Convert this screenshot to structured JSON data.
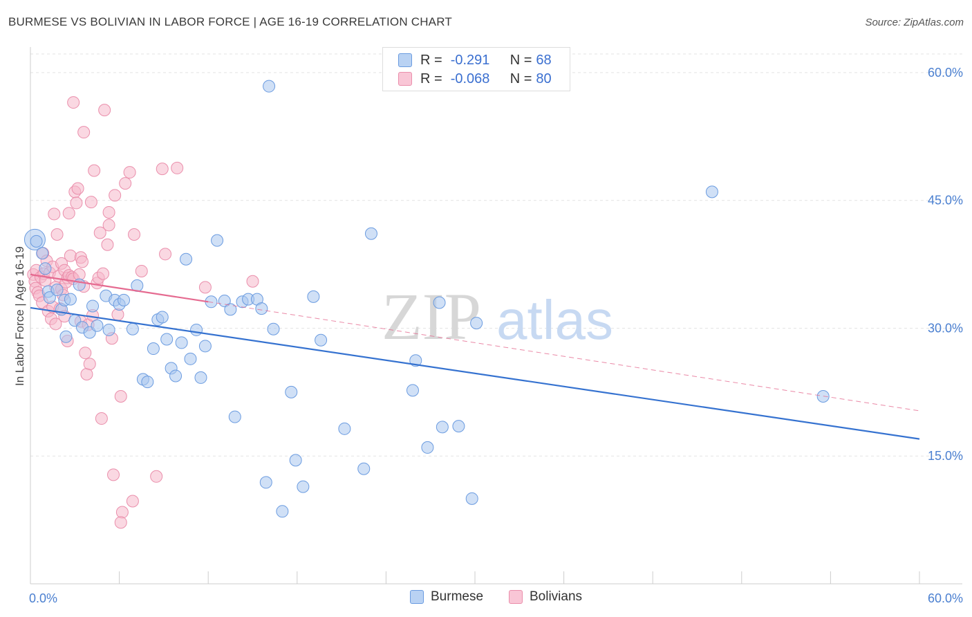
{
  "title": "BURMESE VS BOLIVIAN IN LABOR FORCE | AGE 16-19 CORRELATION CHART",
  "source": "Source: ZipAtlas.com",
  "colors": {
    "blue_fill": "#a9c6ef",
    "blue_stroke": "#6a9be0",
    "blue_line": "#3572d0",
    "pink_fill": "#f6b8cb",
    "pink_stroke": "#ea8eab",
    "pink_line": "#e56a90",
    "axis_text": "#4a7fd0",
    "grid": "#e3e3e3"
  },
  "legend": {
    "rows": [
      {
        "r_label": "R =",
        "r_value": "-0.291",
        "n_label": "N =",
        "n_value": "68"
      },
      {
        "r_label": "R =",
        "r_value": "-0.068",
        "n_label": "N =",
        "n_value": "80"
      }
    ]
  },
  "bottom_legend": [
    "Burmese",
    "Bolivians"
  ],
  "watermark": {
    "zip": "ZIP",
    "atlas": "atlas"
  },
  "chart_data": {
    "type": "scatter",
    "title": "BURMESE VS BOLIVIAN IN LABOR FORCE | AGE 16-19 CORRELATION CHART",
    "xlabel": "",
    "ylabel": "In Labor Force | Age 16-19",
    "xlim": [
      0,
      60
    ],
    "ylim": [
      0,
      63
    ],
    "x_tick_labels": [
      "0.0%",
      "60.0%"
    ],
    "y_ticks": [
      15,
      30,
      45,
      60
    ],
    "y_tick_labels": [
      "15.0%",
      "30.0%",
      "45.0%",
      "60.0%"
    ],
    "series": [
      {
        "name": "Burmese",
        "R": -0.291,
        "N": 68,
        "trend": {
          "x": [
            0,
            60
          ],
          "y": [
            32.4,
            17.0
          ]
        },
        "points": [
          [
            0.3,
            40.4
          ],
          [
            0.4,
            40.2
          ],
          [
            0.8,
            38.8
          ],
          [
            1.0,
            37.0
          ],
          [
            1.2,
            34.3
          ],
          [
            1.3,
            33.6
          ],
          [
            1.8,
            34.5
          ],
          [
            2.1,
            32.2
          ],
          [
            2.3,
            33.3
          ],
          [
            2.4,
            29.0
          ],
          [
            2.7,
            33.4
          ],
          [
            3.0,
            30.9
          ],
          [
            3.3,
            35.1
          ],
          [
            3.5,
            30.1
          ],
          [
            4.0,
            29.5
          ],
          [
            4.2,
            32.6
          ],
          [
            4.5,
            30.3
          ],
          [
            5.1,
            33.8
          ],
          [
            5.3,
            29.8
          ],
          [
            5.7,
            33.3
          ],
          [
            6.0,
            32.8
          ],
          [
            6.3,
            33.3
          ],
          [
            6.9,
            29.9
          ],
          [
            7.2,
            35.0
          ],
          [
            7.6,
            24.0
          ],
          [
            7.9,
            23.7
          ],
          [
            8.3,
            27.6
          ],
          [
            8.6,
            31.0
          ],
          [
            8.9,
            31.3
          ],
          [
            9.2,
            28.7
          ],
          [
            9.5,
            25.3
          ],
          [
            9.8,
            24.4
          ],
          [
            10.2,
            28.3
          ],
          [
            10.5,
            38.1
          ],
          [
            10.8,
            26.4
          ],
          [
            11.2,
            29.8
          ],
          [
            11.5,
            24.2
          ],
          [
            11.8,
            27.9
          ],
          [
            12.2,
            33.1
          ],
          [
            12.6,
            40.3
          ],
          [
            13.1,
            33.2
          ],
          [
            13.5,
            32.2
          ],
          [
            13.8,
            19.6
          ],
          [
            14.3,
            33.1
          ],
          [
            14.7,
            33.4
          ],
          [
            15.3,
            33.4
          ],
          [
            15.6,
            32.3
          ],
          [
            15.9,
            11.9
          ],
          [
            16.1,
            58.4
          ],
          [
            16.4,
            29.9
          ],
          [
            17.0,
            8.5
          ],
          [
            17.6,
            22.5
          ],
          [
            17.9,
            14.5
          ],
          [
            18.4,
            11.4
          ],
          [
            19.1,
            33.7
          ],
          [
            19.6,
            28.6
          ],
          [
            21.2,
            18.2
          ],
          [
            22.5,
            13.5
          ],
          [
            23.0,
            41.1
          ],
          [
            25.8,
            22.7
          ],
          [
            26.0,
            26.2
          ],
          [
            26.8,
            16.0
          ],
          [
            27.6,
            33.0
          ],
          [
            27.8,
            18.4
          ],
          [
            28.9,
            18.5
          ],
          [
            29.8,
            10.0
          ],
          [
            30.1,
            30.6
          ],
          [
            46.0,
            46.0
          ],
          [
            53.5,
            22.0
          ]
        ]
      },
      {
        "name": "Bolivians",
        "R": -0.068,
        "N": 80,
        "trend": {
          "x": [
            0,
            60
          ],
          "y": [
            36.3,
            20.3
          ]
        },
        "points": [
          [
            0.2,
            36.3
          ],
          [
            0.3,
            35.5
          ],
          [
            0.35,
            34.7
          ],
          [
            0.4,
            36.8
          ],
          [
            0.5,
            34.2
          ],
          [
            0.6,
            33.8
          ],
          [
            0.7,
            36.0
          ],
          [
            0.8,
            33.0
          ],
          [
            0.85,
            38.8
          ],
          [
            0.9,
            36.4
          ],
          [
            1.0,
            35.6
          ],
          [
            1.1,
            37.9
          ],
          [
            1.2,
            32.0
          ],
          [
            1.3,
            36.5
          ],
          [
            1.4,
            31.1
          ],
          [
            1.5,
            32.5
          ],
          [
            1.5,
            37.2
          ],
          [
            1.6,
            43.4
          ],
          [
            1.7,
            30.5
          ],
          [
            1.7,
            34.8
          ],
          [
            1.8,
            41.0
          ],
          [
            1.9,
            36.1
          ],
          [
            2.0,
            32.3
          ],
          [
            2.1,
            37.6
          ],
          [
            2.1,
            34.6
          ],
          [
            2.2,
            33.9
          ],
          [
            2.3,
            31.4
          ],
          [
            2.3,
            36.8
          ],
          [
            2.4,
            35.4
          ],
          [
            2.5,
            28.5
          ],
          [
            2.5,
            35.9
          ],
          [
            2.6,
            36.2
          ],
          [
            2.6,
            43.5
          ],
          [
            2.7,
            38.5
          ],
          [
            2.8,
            36.0
          ],
          [
            2.9,
            35.8
          ],
          [
            2.9,
            56.5
          ],
          [
            3.0,
            46.0
          ],
          [
            3.1,
            44.7
          ],
          [
            3.2,
            46.4
          ],
          [
            3.3,
            36.3
          ],
          [
            3.4,
            38.3
          ],
          [
            3.4,
            30.8
          ],
          [
            3.5,
            37.8
          ],
          [
            3.6,
            53.0
          ],
          [
            3.6,
            34.9
          ],
          [
            3.7,
            27.1
          ],
          [
            3.8,
            24.6
          ],
          [
            3.9,
            30.4
          ],
          [
            4.0,
            25.8
          ],
          [
            4.1,
            44.8
          ],
          [
            4.2,
            31.5
          ],
          [
            4.3,
            48.5
          ],
          [
            4.5,
            35.3
          ],
          [
            4.6,
            35.9
          ],
          [
            4.7,
            41.2
          ],
          [
            4.8,
            19.4
          ],
          [
            4.9,
            36.4
          ],
          [
            5.0,
            55.6
          ],
          [
            5.2,
            39.8
          ],
          [
            5.3,
            43.6
          ],
          [
            5.3,
            42.1
          ],
          [
            5.5,
            28.8
          ],
          [
            5.6,
            12.8
          ],
          [
            5.7,
            45.6
          ],
          [
            5.9,
            31.6
          ],
          [
            6.1,
            22.0
          ],
          [
            6.2,
            8.4
          ],
          [
            6.1,
            7.2
          ],
          [
            6.4,
            47.0
          ],
          [
            6.7,
            48.3
          ],
          [
            6.9,
            9.7
          ],
          [
            7.0,
            41.0
          ],
          [
            7.5,
            36.7
          ],
          [
            8.5,
            12.6
          ],
          [
            8.9,
            48.7
          ],
          [
            9.1,
            38.7
          ],
          [
            9.9,
            48.8
          ],
          [
            11.8,
            34.8
          ],
          [
            15.0,
            35.5
          ]
        ]
      }
    ]
  }
}
